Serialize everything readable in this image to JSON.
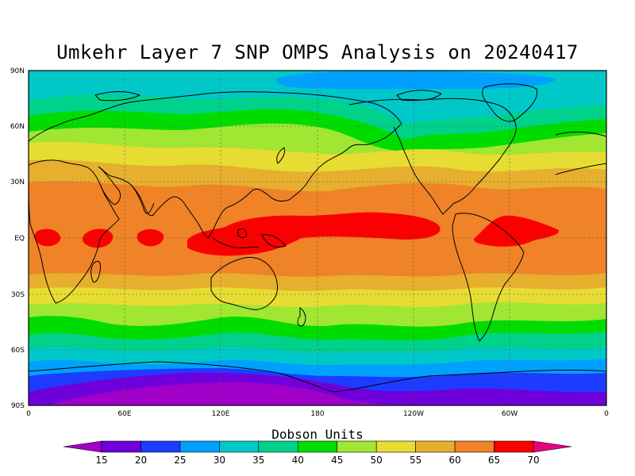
{
  "title": "Umkehr Layer 7 SNP OMPS Analysis on 20240417",
  "colorbar": {
    "title": "Dobson Units",
    "labels": [
      "15",
      "20",
      "25",
      "30",
      "35",
      "40",
      "45",
      "50",
      "55",
      "60",
      "65",
      "70"
    ],
    "colors": [
      "#a000c8",
      "#6e00dc",
      "#1e3cff",
      "#00a0ff",
      "#00c8c8",
      "#00d28c",
      "#00dc00",
      "#a0e632",
      "#e6dc32",
      "#e6af2d",
      "#f08228",
      "#fa0000",
      "#e60082"
    ]
  },
  "axes": {
    "x_ticks": [
      "0",
      "60E",
      "120E",
      "180",
      "120W",
      "60W",
      "0"
    ],
    "y_ticks": [
      "90N",
      "60N",
      "30N",
      "EQ",
      "30S",
      "60S",
      "90S"
    ]
  },
  "map": {
    "projection": "equirectangular",
    "lon_range": [
      0,
      360
    ],
    "lat_range": [
      -90,
      90
    ],
    "field": "ozone column (Dobson Units)",
    "notable_regions": [
      {
        "name": "tropical maximum",
        "value_range": "65-70"
      },
      {
        "name": "antarctic minimum",
        "value_range": "<20"
      },
      {
        "name": "arctic minimum",
        "value_range": "25-30"
      }
    ]
  }
}
